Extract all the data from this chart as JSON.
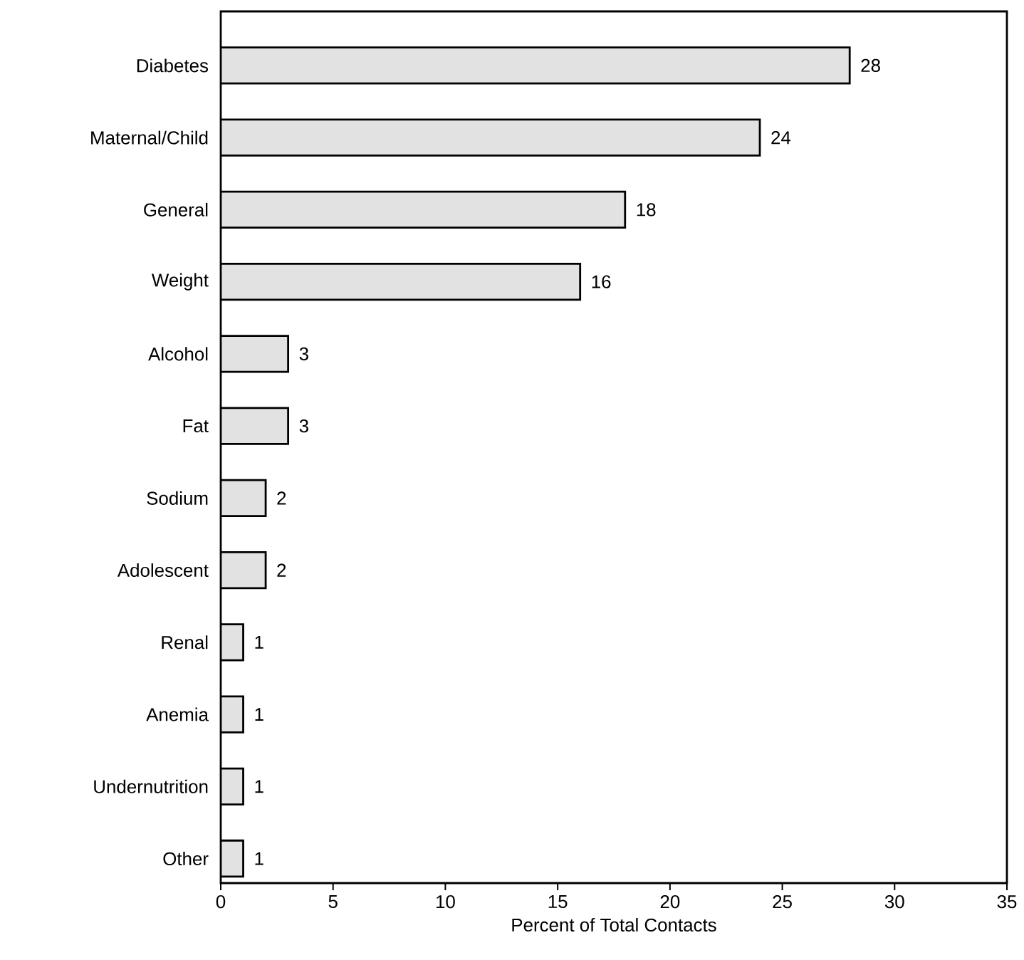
{
  "chart_data": {
    "type": "bar",
    "orientation": "horizontal",
    "xlabel": "Percent of Total Contacts",
    "categories": [
      "Diabetes",
      "Maternal/Child",
      "General",
      "Weight",
      "Alcohol",
      "Fat",
      "Sodium",
      "Adolescent",
      "Renal",
      "Anemia",
      "Undernutrition",
      "Other"
    ],
    "values": [
      28,
      24,
      18,
      16,
      3,
      3,
      2,
      2,
      1,
      1,
      1,
      1
    ],
    "color": "#e2e2e2",
    "data_labels": true,
    "grid": false,
    "xlim": [
      0,
      35
    ],
    "xticks": [
      0,
      5,
      10,
      15,
      20,
      25,
      30,
      35
    ]
  }
}
